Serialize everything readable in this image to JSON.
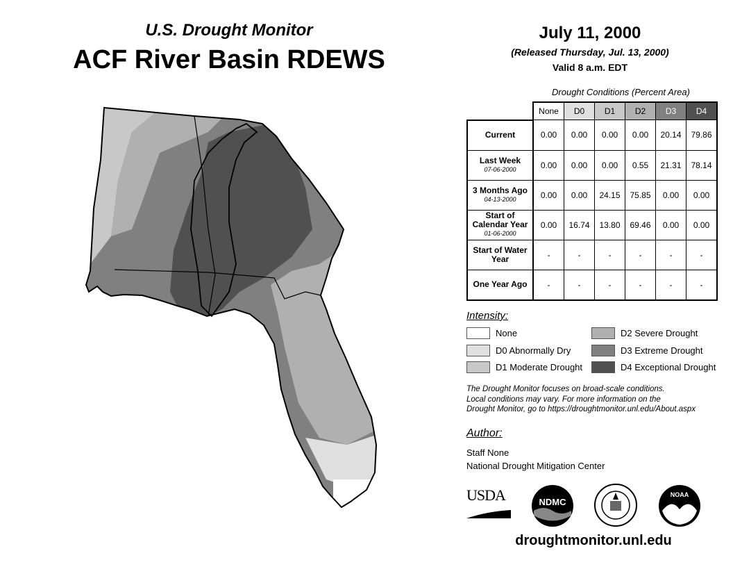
{
  "header": {
    "subtitle": "U.S. Drought Monitor",
    "title": "ACF River Basin RDEWS",
    "date": "July 11, 2000",
    "released": "(Released Thursday, Jul. 13, 2000)",
    "valid": "Valid 8 a.m. EDT"
  },
  "table": {
    "caption": "Drought Conditions (Percent Area)",
    "columns": [
      "None",
      "D0",
      "D1",
      "D2",
      "D3",
      "D4"
    ],
    "rows": [
      {
        "label": "Current",
        "date": "",
        "values": [
          "0.00",
          "0.00",
          "0.00",
          "0.00",
          "20.14",
          "79.86"
        ]
      },
      {
        "label": "Last Week",
        "date": "07-06-2000",
        "values": [
          "0.00",
          "0.00",
          "0.00",
          "0.55",
          "21.31",
          "78.14"
        ]
      },
      {
        "label": "3 Months Ago",
        "date": "04-13-2000",
        "values": [
          "0.00",
          "0.00",
          "24.15",
          "75.85",
          "0.00",
          "0.00"
        ]
      },
      {
        "label": "Start of Calendar Year",
        "date": "01-06-2000",
        "values": [
          "0.00",
          "16.74",
          "13.80",
          "69.46",
          "0.00",
          "0.00"
        ]
      },
      {
        "label": "Start of Water Year",
        "date": "",
        "values": [
          "-",
          "-",
          "-",
          "-",
          "-",
          "-"
        ]
      },
      {
        "label": "One Year Ago",
        "date": "",
        "values": [
          "-",
          "-",
          "-",
          "-",
          "-",
          "-"
        ]
      }
    ]
  },
  "legend": {
    "title": "Intensity:",
    "items": [
      {
        "label": "None",
        "color": "#ffffff"
      },
      {
        "label": "D0 Abnormally Dry",
        "color": "#e0e0e0"
      },
      {
        "label": "D1 Moderate Drought",
        "color": "#c8c8c8"
      },
      {
        "label": "D2 Severe Drought",
        "color": "#b0b0b0"
      },
      {
        "label": "D3 Extreme Drought",
        "color": "#808080"
      },
      {
        "label": "D4 Exceptional Drought",
        "color": "#505050"
      }
    ]
  },
  "note": [
    "The Drought Monitor focuses on broad-scale conditions.",
    "Local conditions may vary. For more information on the",
    "Drought Monitor, go to https://droughtmonitor.unl.edu/About.aspx"
  ],
  "author": {
    "title": "Author:",
    "name": "Staff None",
    "org": "National Drought Mitigation Center"
  },
  "logos": {
    "usda": "USDA",
    "ndmc": "NDMC",
    "noaa": "NOAA"
  },
  "footer": {
    "url": "droughtmonitor.unl.edu"
  }
}
